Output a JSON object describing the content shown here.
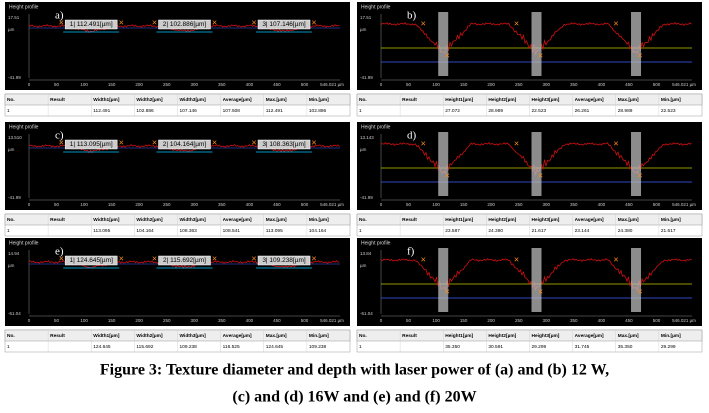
{
  "panels": [
    {
      "label": "a)",
      "profile_title": "Height profile",
      "y_axis": [
        "17.51",
        "µm",
        "-41.99"
      ],
      "x_axis": [
        "0",
        "50",
        "100",
        "150",
        "200",
        "250",
        "300",
        "350",
        "400",
        "450",
        "500",
        "546.021 µm"
      ],
      "kind": "width",
      "measurements": [
        "1| 112.491[µm]",
        "2| 102.886[µm]",
        "3| 107.146[µm]"
      ],
      "table": {
        "headers": [
          "No.",
          "Result",
          "Width1[µm]",
          "Width2[µm]",
          "Width3[µm]",
          "Average[µm]",
          "Max.[µm]",
          "Min.[µm]"
        ],
        "row": [
          "1",
          null,
          "112.491",
          "102.886",
          "107.146",
          "107.508",
          "112.491",
          "102.886"
        ]
      }
    },
    {
      "label": "b)",
      "profile_title": "Height profile",
      "y_axis": [
        "17.51",
        "µm",
        "-41.99"
      ],
      "x_axis": [
        "0",
        "50",
        "100",
        "150",
        "200",
        "250",
        "300",
        "350",
        "400",
        "450",
        "500",
        "546.021 µm"
      ],
      "kind": "depth",
      "measurements": [],
      "table": {
        "headers": [
          "No.",
          "Result",
          "Height1[µm]",
          "Height2[µm]",
          "Height3[µm]",
          "Average[µm]",
          "Max.[µm]",
          "Min.[µm]"
        ],
        "row": [
          "1",
          null,
          "27.072",
          "28.989",
          "22.523",
          "26.261",
          "28.989",
          "22.523"
        ]
      }
    },
    {
      "label": "c)",
      "profile_title": "Height profile",
      "y_axis": [
        "13.510",
        "µm",
        "-41.99"
      ],
      "x_axis": [
        "0",
        "50",
        "100",
        "150",
        "200",
        "250",
        "300",
        "350",
        "400",
        "450",
        "500",
        "546.021 µm"
      ],
      "kind": "width",
      "measurements": [
        "1| 113.095[µm]",
        "2| 104.164[µm]",
        "3| 108.363[µm]"
      ],
      "table": {
        "headers": [
          "No.",
          "Result",
          "Width1[µm]",
          "Width2[µm]",
          "Width3[µm]",
          "Average[µm]",
          "Max.[µm]",
          "Min.[µm]"
        ],
        "row": [
          "1",
          null,
          "113.095",
          "104.164",
          "108.363",
          "108.541",
          "113.095",
          "104.164"
        ]
      }
    },
    {
      "label": "d)",
      "profile_title": "Height profile",
      "y_axis": [
        "13.143",
        "µm",
        "-41.99"
      ],
      "x_axis": [
        "0",
        "50",
        "100",
        "150",
        "200",
        "250",
        "300",
        "350",
        "400",
        "450",
        "500",
        "546.021 µm"
      ],
      "kind": "depth",
      "measurements": [],
      "table": {
        "headers": [
          "No.",
          "Result",
          "Height1[µm]",
          "Height2[µm]",
          "Height3[µm]",
          "Average[µm]",
          "Max.[µm]",
          "Min.[µm]"
        ],
        "row": [
          "1",
          null,
          "23.587",
          "24.380",
          "21.617",
          "23.144",
          "24.380",
          "21.617"
        ]
      }
    },
    {
      "label": "e)",
      "profile_title": "Height profile",
      "y_axis": [
        "14.94",
        "µm",
        "-51.04"
      ],
      "x_axis": [
        "0",
        "50",
        "100",
        "150",
        "200",
        "250",
        "300",
        "350",
        "400",
        "450",
        "500",
        "546.021 µm"
      ],
      "kind": "width",
      "measurements": [
        "1| 124.645[µm]",
        "2| 115.692[µm]",
        "3| 109.238[µm]"
      ],
      "table": {
        "headers": [
          "No.",
          "Result",
          "Width1[µm]",
          "Width2[µm]",
          "Width3[µm]",
          "Average[µm]",
          "Max.[µm]",
          "Min.[µm]"
        ],
        "row": [
          "1",
          null,
          "124.645",
          "115.692",
          "109.238",
          "116.525",
          "124.645",
          "109.238"
        ]
      }
    },
    {
      "label": "f)",
      "profile_title": "Height profile",
      "y_axis": [
        "13.84",
        "µm",
        "-51.04"
      ],
      "x_axis": [
        "0",
        "50",
        "100",
        "150",
        "200",
        "250",
        "300",
        "350",
        "400",
        "450",
        "500",
        "546.021 µm"
      ],
      "kind": "depth",
      "measurements": [],
      "table": {
        "headers": [
          "No.",
          "Result",
          "Height1[µm]",
          "Height2[µm]",
          "Height3[µm]",
          "Average[µm]",
          "Max.[µm]",
          "Min.[µm]"
        ],
        "row": [
          "1",
          null,
          "35.350",
          "30.591",
          "29.299",
          "31.745",
          "35.350",
          "29.299"
        ]
      }
    }
  ],
  "caption": [
    "Figure 3: Texture diameter and depth with laser power of (a) and (b) 12 W,",
    "(c) and (d) 16W and (e) and (f) 20W"
  ]
}
